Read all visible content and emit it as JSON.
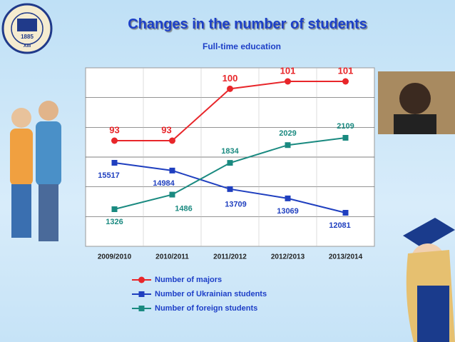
{
  "chart_data": {
    "type": "line",
    "title": "Changes in the number of students",
    "subtitle": "Full-time education",
    "categories": [
      "2009/2010",
      "2010/2011",
      "2011/2012",
      "2012/2013",
      "2013/2014"
    ],
    "series": [
      {
        "name": "Number of majors",
        "color": "#e8262a",
        "values": [
          93,
          93,
          100,
          101,
          101
        ]
      },
      {
        "name": "Number of Ukrainian students",
        "color": "#1f3fbf",
        "values": [
          15517,
          14984,
          13709,
          13069,
          12081
        ]
      },
      {
        "name": "Number of foreign students",
        "color": "#1a8a80",
        "values": [
          1326,
          1486,
          1834,
          2029,
          2109
        ]
      }
    ],
    "grid": true
  },
  "logo": {
    "year": "1885",
    "numeral": "XIII"
  }
}
